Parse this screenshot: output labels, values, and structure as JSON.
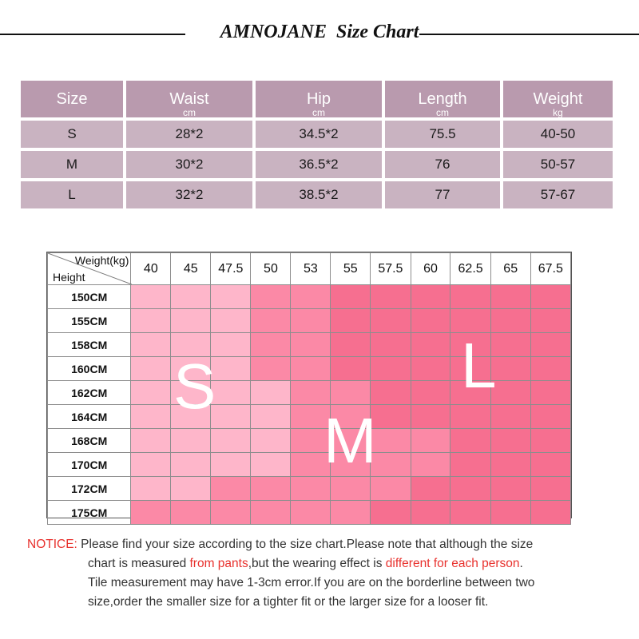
{
  "title": {
    "brand": "AMNOJANE",
    "text": "Size Chart"
  },
  "size_table": {
    "headers": [
      {
        "label": "Size",
        "unit": ""
      },
      {
        "label": "Waist",
        "unit": "cm"
      },
      {
        "label": "Hip",
        "unit": "cm"
      },
      {
        "label": "Length",
        "unit": "cm"
      },
      {
        "label": "Weight",
        "unit": "kg"
      }
    ],
    "rows": [
      [
        "S",
        "28*2",
        "34.5*2",
        "75.5",
        "40-50"
      ],
      [
        "M",
        "30*2",
        "36.5*2",
        "76",
        "50-57"
      ],
      [
        "L",
        "32*2",
        "38.5*2",
        "77",
        "57-67"
      ]
    ]
  },
  "grid": {
    "corner_weight": "Weight(kg)",
    "corner_height": "Height",
    "weights": [
      "40",
      "45",
      "47.5",
      "50",
      "53",
      "55",
      "57.5",
      "60",
      "62.5",
      "65",
      "67.5"
    ],
    "heights": [
      "150CM",
      "155CM",
      "158CM",
      "160CM",
      "162CM",
      "164CM",
      "168CM",
      "170CM",
      "172CM",
      "175CM"
    ],
    "colors": {
      "S": "#feb6ca",
      "M": "#fb89a6",
      "L": "#f66f90"
    },
    "zones": [
      [
        "S",
        "S",
        "S",
        "M",
        "M",
        "L",
        "L",
        "L",
        "L",
        "L",
        "L"
      ],
      [
        "S",
        "S",
        "S",
        "M",
        "M",
        "L",
        "L",
        "L",
        "L",
        "L",
        "L"
      ],
      [
        "S",
        "S",
        "S",
        "M",
        "M",
        "L",
        "L",
        "L",
        "L",
        "L",
        "L"
      ],
      [
        "S",
        "S",
        "S",
        "M",
        "M",
        "L",
        "L",
        "L",
        "L",
        "L",
        "L"
      ],
      [
        "S",
        "S",
        "S",
        "S",
        "M",
        "M",
        "L",
        "L",
        "L",
        "L",
        "L"
      ],
      [
        "S",
        "S",
        "S",
        "S",
        "M",
        "M",
        "L",
        "L",
        "L",
        "L",
        "L"
      ],
      [
        "S",
        "S",
        "S",
        "S",
        "M",
        "M",
        "M",
        "M",
        "L",
        "L",
        "L"
      ],
      [
        "S",
        "S",
        "S",
        "S",
        "M",
        "M",
        "M",
        "M",
        "L",
        "L",
        "L"
      ],
      [
        "S",
        "S",
        "M",
        "M",
        "M",
        "M",
        "M",
        "L",
        "L",
        "L",
        "L"
      ],
      [
        "M",
        "M",
        "M",
        "M",
        "M",
        "M",
        "L",
        "L",
        "L",
        "L",
        "L"
      ]
    ],
    "zone_labels": [
      "S",
      "M",
      "L"
    ]
  },
  "notice": {
    "label": "NOTICE:",
    "part1": " Please find your size according to the size chart.Please note that although the size",
    "part2": "chart is measured ",
    "red1": "from pants",
    "part3": ",but the wearing effect is ",
    "red2": "different for each person",
    "part4": ".",
    "part5": "Tile measurement may have 1-3cm error.If you are on the borderline between two",
    "part6": "size,order the smaller size for a tighter fit or the larger size for a looser fit."
  }
}
